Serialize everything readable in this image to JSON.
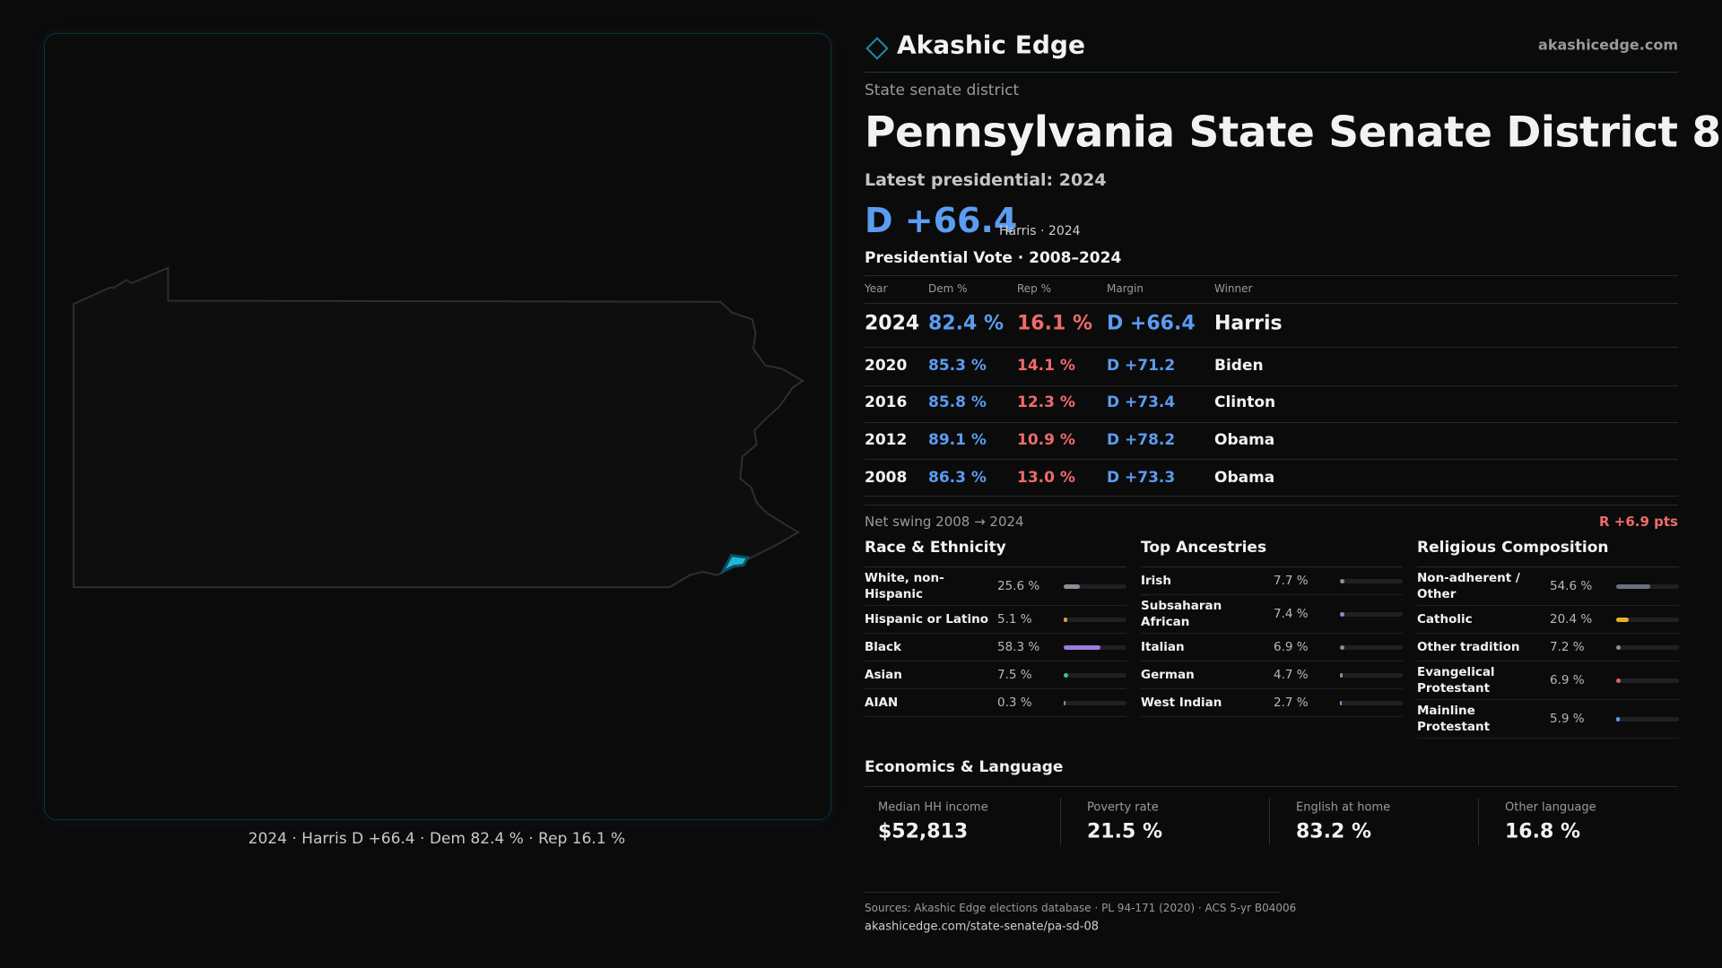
{
  "header": {
    "brand": "Akashic Edge",
    "site": "akashicedge.com"
  },
  "district": {
    "kind": "State senate district",
    "title": "Pennsylvania State Senate District 8",
    "latest": "Latest presidential: 2024",
    "margin": "D +66.4",
    "margin_note": "Harris · 2024"
  },
  "map": {
    "caption": "2024 · Harris D +66.4 · Dem 82.4 % · Rep 16.1 %"
  },
  "presidential": {
    "title": "Presidential Vote · 2008–2024",
    "columns": [
      "Year",
      "Dem %",
      "Rep %",
      "Margin",
      "Winner"
    ],
    "rows": [
      [
        "2024",
        "82.4 %",
        "16.1 %",
        "D +66.4",
        "Harris"
      ],
      [
        "2020",
        "85.3 %",
        "14.1 %",
        "D +71.2",
        "Biden"
      ],
      [
        "2016",
        "85.8 %",
        "12.3 %",
        "D +73.4",
        "Clinton"
      ],
      [
        "2012",
        "89.1 %",
        "10.9 %",
        "D +78.2",
        "Obama"
      ],
      [
        "2008",
        "86.3 %",
        "13.0 %",
        "D +73.3",
        "Obama"
      ]
    ],
    "swing_label": "Net swing 2008 → 2024",
    "swing": "R +6.9 pts"
  },
  "race": {
    "title": "Race & Ethnicity",
    "items": [
      {
        "name": "White, non-Hispanic",
        "value": 25.6,
        "label": "25.6 %",
        "color": "#8a8f98"
      },
      {
        "name": "Hispanic or Latino",
        "value": 5.1,
        "label": "5.1 %",
        "color": "#e0a030"
      },
      {
        "name": "Black",
        "value": 58.3,
        "label": "58.3 %",
        "color": "#9b7be0"
      },
      {
        "name": "Asian",
        "value": 7.5,
        "label": "7.5 %",
        "color": "#3fc28a"
      },
      {
        "name": "AIAN",
        "value": 0.3,
        "label": "0.3 %",
        "color": "#8a8f98"
      }
    ]
  },
  "ancestry": {
    "title": "Top Ancestries",
    "items": [
      {
        "name": "Irish",
        "value": 7.7,
        "label": "7.7 %",
        "color": "#8a8f98"
      },
      {
        "name": "Subsaharan African",
        "value": 7.4,
        "label": "7.4 %",
        "color": "#8a8fd8"
      },
      {
        "name": "Italian",
        "value": 6.9,
        "label": "6.9 %",
        "color": "#8a8f98"
      },
      {
        "name": "German",
        "value": 4.7,
        "label": "4.7 %",
        "color": "#8a8f98"
      },
      {
        "name": "West Indian",
        "value": 2.7,
        "label": "2.7 %",
        "color": "#8a8fd8"
      }
    ]
  },
  "religion": {
    "title": "Religious Composition",
    "items": [
      {
        "name": "Non-adherent / Other",
        "value": 54.6,
        "label": "54.6 %",
        "color": "#6b7080"
      },
      {
        "name": "Catholic",
        "value": 20.4,
        "label": "20.4 %",
        "color": "#e6b422"
      },
      {
        "name": "Other tradition",
        "value": 7.2,
        "label": "7.2 %",
        "color": "#8a8f98"
      },
      {
        "name": "Evangelical Protestant",
        "value": 6.9,
        "label": "6.9 %",
        "color": "#e06060"
      },
      {
        "name": "Mainline Protestant",
        "value": 5.9,
        "label": "5.9 %",
        "color": "#5b9cf0"
      }
    ]
  },
  "economics": {
    "title": "Economics & Language",
    "cards": [
      {
        "label": "Median HH income",
        "value": "$52,813"
      },
      {
        "label": "Poverty rate",
        "value": "21.5 %"
      },
      {
        "label": "English at home",
        "value": "83.2 %"
      },
      {
        "label": "Other language",
        "value": "16.8 %"
      }
    ]
  },
  "footer": {
    "sources": "Sources: Akashic Edge elections database · PL 94-171 (2020) · ACS 5-yr B04006",
    "url": "akashicedge.com/state-senate/pa-sd-08"
  }
}
